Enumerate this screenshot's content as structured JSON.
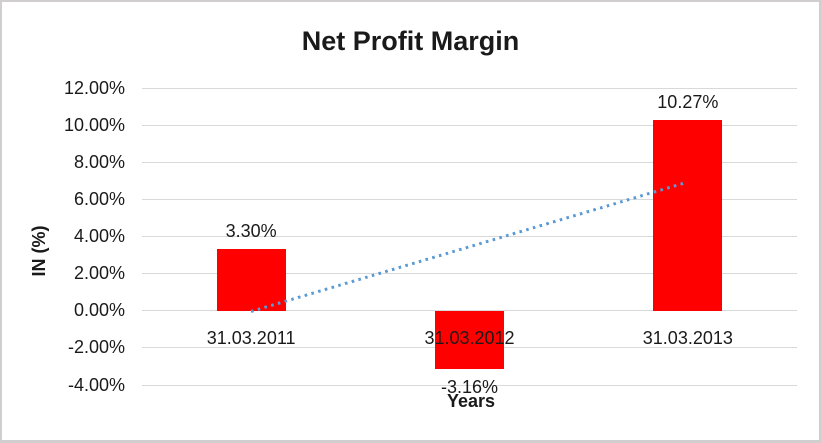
{
  "chart_data": {
    "type": "bar",
    "title": "Net Profit Margin",
    "xlabel": "Years",
    "ylabel": "IN (%)",
    "categories": [
      "31.03.2011",
      "31.03.2012",
      "31.03.2013"
    ],
    "values": [
      3.3,
      -3.16,
      10.27
    ],
    "data_labels": [
      "3.30%",
      "-3.16%",
      "10.27%"
    ],
    "ylim": [
      -4,
      12
    ],
    "yticks": [
      {
        "value": 12,
        "label": "12.00%"
      },
      {
        "value": 10,
        "label": "10.00%"
      },
      {
        "value": 8,
        "label": "8.00%"
      },
      {
        "value": 6,
        "label": "6.00%"
      },
      {
        "value": 4,
        "label": "4.00%"
      },
      {
        "value": 2,
        "label": "2.00%"
      },
      {
        "value": 0,
        "label": "0.00%"
      },
      {
        "value": -2,
        "label": "-2.00%"
      },
      {
        "value": -4,
        "label": "-4.00%"
      }
    ],
    "grid": true,
    "legend": "none",
    "bar_color": "#ff0000",
    "trendline": {
      "style": "dotted",
      "color": "#5b9bd5",
      "start_category_index": 0,
      "start_value": -0.02,
      "end_category_index": 2,
      "end_value": 6.95
    },
    "gridline_color": "#d9d9d9",
    "frame_color": "#d0cece",
    "text_color": "#1a1a1a",
    "background": "#ffffff"
  }
}
